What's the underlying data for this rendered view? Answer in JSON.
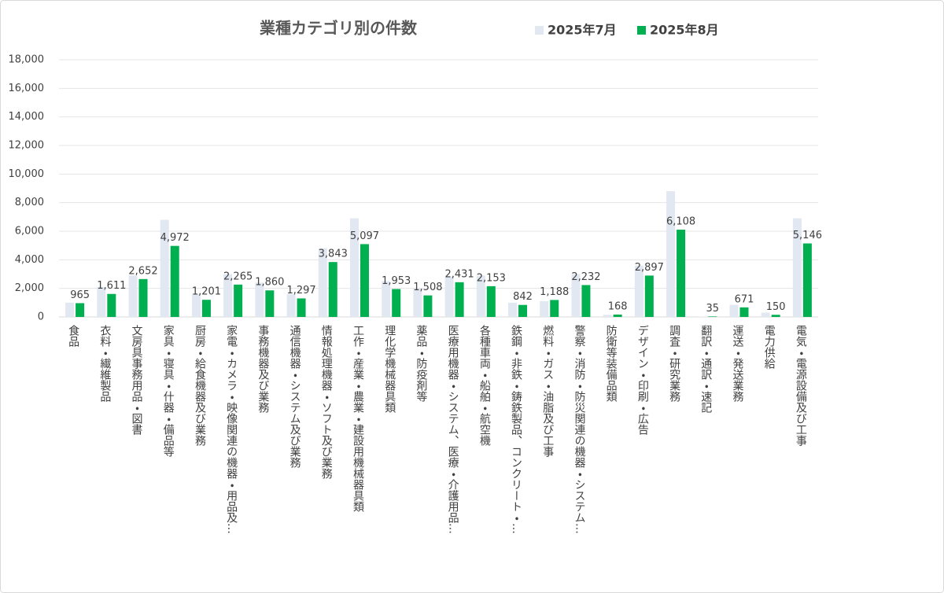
{
  "chart_data": {
    "type": "bar",
    "title": "業種カテゴリ別の件数",
    "categories": [
      "食品",
      "衣料・繊維製品",
      "文房具事務用品・図書",
      "家具・寝具・什器・備品等",
      "厨房・給食機器及び業務",
      "家電・カメラ・映像関連の機器・用品及…",
      "事務機器及び業務",
      "通信機器・システム及び業務",
      "情報処理機器・ソフト及び業務",
      "工作・産業・農業・建設用機械器具類",
      "理化学機械器具類",
      "薬品・防疫剤等",
      "医療用機器・システム、医療・介護用品…",
      "各種車両・船舶・航空機",
      "鉄鋼・非鉄・鋳鉄製品、コンクリート・…",
      "燃料・ガス・油脂及び工事",
      "警察・消防・防災関連の機器・システム…",
      "防衛等装備品類",
      "デザイン・印刷・広告",
      "調査・研究業務",
      "翻訳・通訳・速記",
      "運送・発送業務",
      "電力供給",
      "電気・電源設備及び工事"
    ],
    "series": [
      {
        "name": "2025年7月",
        "color": "#e2e8f1",
        "values": [
          1000,
          2100,
          2900,
          6800,
          1600,
          3000,
          2400,
          1600,
          4800,
          6900,
          2500,
          2000,
          2800,
          2900,
          1000,
          1100,
          3000,
          150,
          3600,
          8800,
          30,
          850,
          300,
          6900
        ]
      },
      {
        "name": "2025年8月",
        "color": "#00b050",
        "values": [
          965,
          1611,
          2652,
          4972,
          1201,
          2265,
          1860,
          1297,
          3843,
          5097,
          1953,
          1508,
          2431,
          2153,
          842,
          1188,
          2232,
          168,
          2897,
          6108,
          35,
          671,
          150,
          5146
        ],
        "value_labels": [
          "965",
          "1,611",
          "2,652",
          "4,972",
          "1,201",
          "2,265",
          "1,860",
          "1,297",
          "3,843",
          "5,097",
          "1,953",
          "1,508",
          "2,431",
          "2,153",
          "842",
          "1,188",
          "2,232",
          "168",
          "2,897",
          "6,108",
          "35",
          "671",
          "150",
          "5,146"
        ]
      }
    ],
    "ylim": [
      0,
      18000
    ],
    "yticks": [
      0,
      {
        "value": 2000,
        "label": "2,000"
      },
      {
        "value": 4000,
        "label": "4,000"
      },
      {
        "value": 6000,
        "label": "6,000"
      },
      {
        "value": 8000,
        "label": "8,000"
      },
      {
        "value": 10000,
        "label": "10,000"
      },
      {
        "value": 12000,
        "label": "12,000"
      },
      {
        "value": 14000,
        "label": "14,000"
      },
      {
        "value": 16000,
        "label": "16,000"
      },
      {
        "value": 18000,
        "label": "18,000"
      }
    ],
    "grid": true
  }
}
